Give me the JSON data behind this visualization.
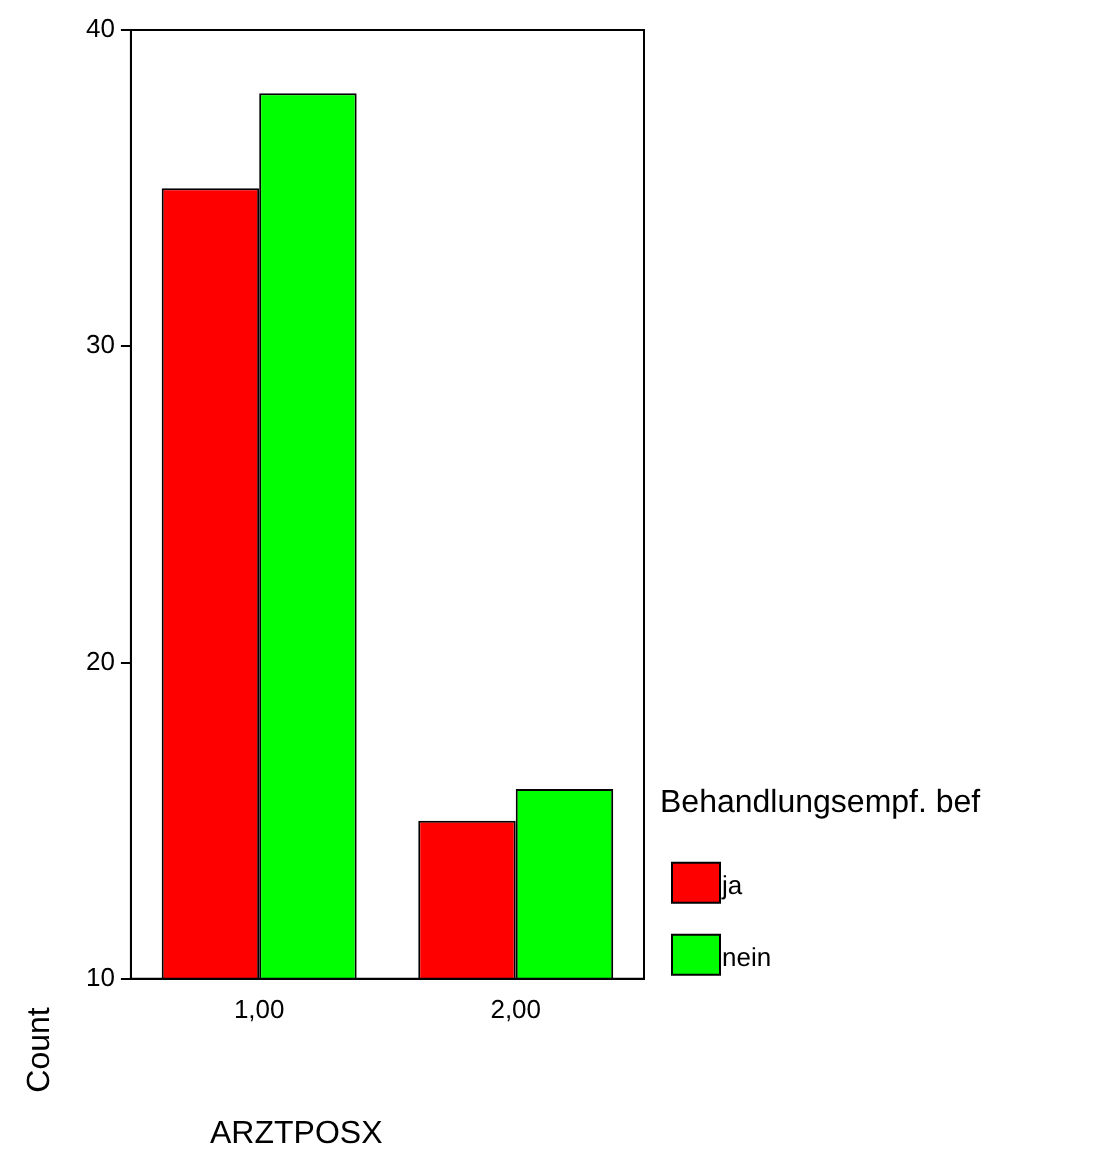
{
  "chart_data": {
    "type": "bar",
    "xlabel": "ARZTPOSX",
    "ylabel": "Count",
    "legend_title": "Behandlungsempf. bef",
    "categories": [
      "1,00",
      "2,00"
    ],
    "series": [
      {
        "name": "ja",
        "color": "#ff0000",
        "values": [
          35,
          15
        ]
      },
      {
        "name": "nein",
        "color": "#00ff00",
        "values": [
          38,
          16
        ]
      }
    ],
    "ylim": [
      10,
      40
    ],
    "yticks": [
      10,
      20,
      30,
      40
    ],
    "grid": false,
    "legend": "right"
  }
}
